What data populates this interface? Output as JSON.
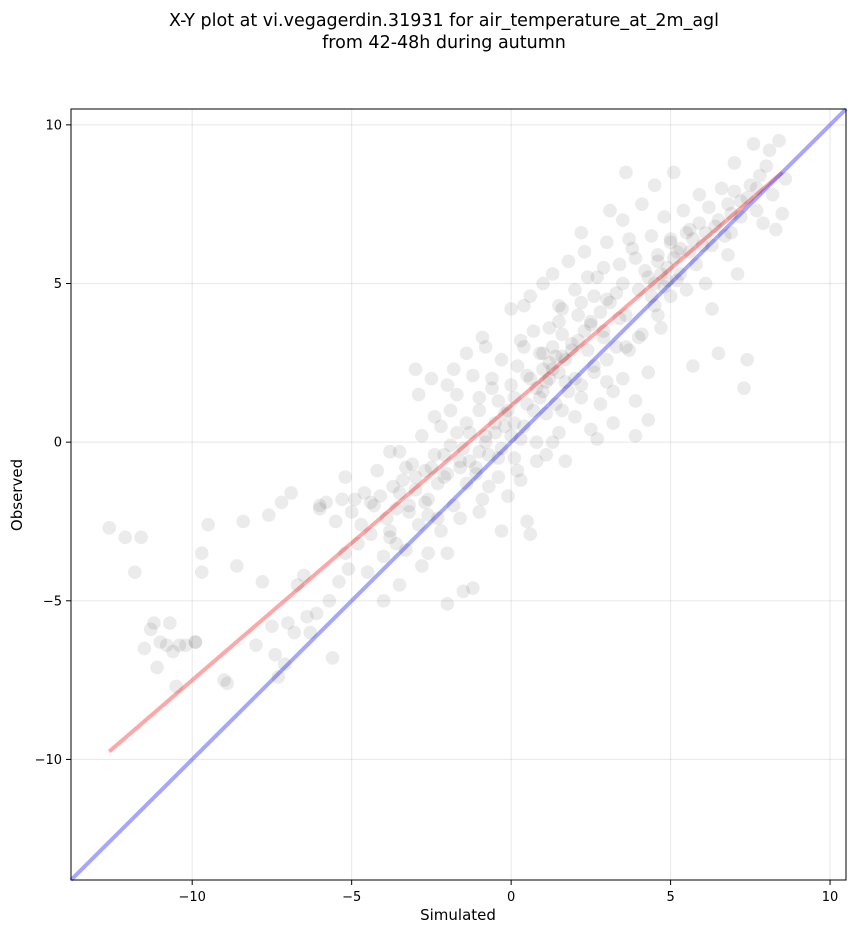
{
  "chart_data": {
    "type": "scatter",
    "title_lines": [
      "X-Y plot at vi.vegagerdin.31931 for air_temperature_at_2m_agl",
      "from 42-48h during autumn"
    ],
    "xlabel": "Simulated",
    "ylabel": "Observed",
    "xlim": [
      -13.8,
      10.5
    ],
    "ylim": [
      -13.8,
      10.5
    ],
    "x_ticks": [
      -10,
      -5,
      0,
      5,
      10
    ],
    "y_ticks": [
      -10,
      -5,
      0,
      5,
      10
    ],
    "x_tick_labels": [
      "−10",
      "−5",
      "0",
      "5",
      "10"
    ],
    "y_tick_labels": [
      "−10",
      "−5",
      "0",
      "5",
      "10"
    ],
    "grid": true,
    "colors": {
      "points": "#000000",
      "fit_line": "#ff4d4d",
      "identity_line": "#4d4dff"
    },
    "fit_line": {
      "x": [
        -12.6,
        8.5
      ],
      "y": [
        -9.75,
        8.5
      ]
    },
    "identity_line": {
      "x": [
        -13.8,
        10.5
      ],
      "y": [
        -13.8,
        10.5
      ]
    },
    "points": [
      [
        -12.6,
        -2.7
      ],
      [
        -12.1,
        -3.0
      ],
      [
        -11.8,
        -4.1
      ],
      [
        -11.6,
        -3.0
      ],
      [
        -11.5,
        -6.5
      ],
      [
        -11.3,
        -5.9
      ],
      [
        -11.2,
        -5.7
      ],
      [
        -11.1,
        -7.1
      ],
      [
        -11.0,
        -6.3
      ],
      [
        -10.8,
        -6.4
      ],
      [
        -10.7,
        -5.7
      ],
      [
        -10.6,
        -6.6
      ],
      [
        -10.5,
        -7.7
      ],
      [
        -10.4,
        -6.4
      ],
      [
        -10.2,
        -6.4
      ],
      [
        -9.9,
        -6.3
      ],
      [
        -9.7,
        -3.5
      ],
      [
        -9.7,
        -4.1
      ],
      [
        -9.5,
        -2.6
      ],
      [
        -9.0,
        -7.5
      ],
      [
        -8.9,
        -7.6
      ],
      [
        -8.6,
        -3.9
      ],
      [
        -8.4,
        -2.5
      ],
      [
        -8.0,
        -6.4
      ],
      [
        -7.8,
        -4.4
      ],
      [
        -7.6,
        -2.3
      ],
      [
        -7.5,
        -5.8
      ],
      [
        -7.4,
        -6.7
      ],
      [
        -7.3,
        -7.4
      ],
      [
        -7.2,
        -1.9
      ],
      [
        -7.1,
        -7.0
      ],
      [
        -7.0,
        -5.7
      ],
      [
        -6.9,
        -1.6
      ],
      [
        -6.8,
        -6.0
      ],
      [
        -6.7,
        -4.5
      ],
      [
        -6.5,
        -4.2
      ],
      [
        -6.4,
        -5.5
      ],
      [
        -6.3,
        -6.0
      ],
      [
        -6.1,
        -5.4
      ],
      [
        -6.0,
        -2.1
      ],
      [
        -5.8,
        -1.9
      ],
      [
        -5.7,
        -5.0
      ],
      [
        -5.6,
        -6.8
      ],
      [
        -5.5,
        -2.5
      ],
      [
        -5.4,
        -4.4
      ],
      [
        -5.3,
        -1.8
      ],
      [
        -5.2,
        -3.5
      ],
      [
        -5.1,
        -4.0
      ],
      [
        -5.0,
        -2.2
      ],
      [
        -4.9,
        -1.8
      ],
      [
        -4.8,
        -3.2
      ],
      [
        -4.7,
        -2.6
      ],
      [
        -4.6,
        -1.6
      ],
      [
        -4.5,
        -4.1
      ],
      [
        -4.4,
        -2.9
      ],
      [
        -4.3,
        -2.0
      ],
      [
        -4.2,
        -0.9
      ],
      [
        -4.1,
        -1.7
      ],
      [
        -4.0,
        -3.6
      ],
      [
        -3.9,
        -2.4
      ],
      [
        -3.8,
        -3.0
      ],
      [
        -3.7,
        -1.4
      ],
      [
        -3.6,
        -2.1
      ],
      [
        -3.5,
        -0.3
      ],
      [
        -3.4,
        -1.2
      ],
      [
        -3.3,
        -3.4
      ],
      [
        -3.2,
        -2.0
      ],
      [
        -3.1,
        -0.7
      ],
      [
        -3.0,
        2.3
      ],
      [
        -3.0,
        -1.5
      ],
      [
        -2.9,
        -2.6
      ],
      [
        -2.8,
        -3.9
      ],
      [
        -2.7,
        -0.9
      ],
      [
        -2.6,
        -1.8
      ],
      [
        -2.5,
        2.0
      ],
      [
        -2.4,
        -0.4
      ],
      [
        -2.3,
        -2.4
      ],
      [
        -2.2,
        0.5
      ],
      [
        -2.1,
        -1.1
      ],
      [
        -2.0,
        1.8
      ],
      [
        -2.0,
        -3.5
      ],
      [
        -1.9,
        -0.1
      ],
      [
        -1.8,
        -2.0
      ],
      [
        -1.7,
        1.5
      ],
      [
        -1.6,
        -0.6
      ],
      [
        -1.5,
        -4.7
      ],
      [
        -1.4,
        2.8
      ],
      [
        -1.4,
        -1.3
      ],
      [
        -1.3,
        0.3
      ],
      [
        -1.2,
        2.1
      ],
      [
        -1.1,
        -0.8
      ],
      [
        -1.0,
        1.0
      ],
      [
        -1.0,
        -2.2
      ],
      [
        -0.9,
        3.3
      ],
      [
        -0.8,
        0.2
      ],
      [
        -0.7,
        -1.4
      ],
      [
        -0.6,
        1.7
      ],
      [
        -0.5,
        0.6
      ],
      [
        -0.4,
        -0.5
      ],
      [
        -0.3,
        2.6
      ],
      [
        -0.2,
        0.9
      ],
      [
        -0.1,
        -1.7
      ],
      [
        0.0,
        4.2
      ],
      [
        0.0,
        0.2
      ],
      [
        0.1,
        1.4
      ],
      [
        0.2,
        -0.9
      ],
      [
        0.3,
        3.2
      ],
      [
        0.4,
        0.5
      ],
      [
        0.5,
        2.1
      ],
      [
        0.5,
        -2.5
      ],
      [
        0.6,
        4.6
      ],
      [
        0.7,
        1.0
      ],
      [
        0.8,
        0.0
      ],
      [
        0.9,
        2.8
      ],
      [
        1.0,
        1.6
      ],
      [
        1.0,
        5.0
      ],
      [
        1.1,
        -0.4
      ],
      [
        1.2,
        3.6
      ],
      [
        1.3,
        2.3
      ],
      [
        1.4,
        1.2
      ],
      [
        1.5,
        4.3
      ],
      [
        1.5,
        0.3
      ],
      [
        1.6,
        2.7
      ],
      [
        1.7,
        1.9
      ],
      [
        1.8,
        5.7
      ],
      [
        1.9,
        3.1
      ],
      [
        2.0,
        0.8
      ],
      [
        2.0,
        2.0
      ],
      [
        2.1,
        4.0
      ],
      [
        2.2,
        1.4
      ],
      [
        2.3,
        6.0
      ],
      [
        2.4,
        2.9
      ],
      [
        2.5,
        3.7
      ],
      [
        2.5,
        0.4
      ],
      [
        2.6,
        2.2
      ],
      [
        2.7,
        5.2
      ],
      [
        2.8,
        1.2
      ],
      [
        2.9,
        3.5
      ],
      [
        3.0,
        6.3
      ],
      [
        3.0,
        2.6
      ],
      [
        3.1,
        4.4
      ],
      [
        3.2,
        1.6
      ],
      [
        3.3,
        3.0
      ],
      [
        3.4,
        5.6
      ],
      [
        3.5,
        2.0
      ],
      [
        3.5,
        7.0
      ],
      [
        3.6,
        4.0
      ],
      [
        3.7,
        2.9
      ],
      [
        3.8,
        6.1
      ],
      [
        3.9,
        1.3
      ],
      [
        4.0,
        4.8
      ],
      [
        4.0,
        3.3
      ],
      [
        4.1,
        7.5
      ],
      [
        4.2,
        5.4
      ],
      [
        4.3,
        2.2
      ],
      [
        4.4,
        6.5
      ],
      [
        4.5,
        4.3
      ],
      [
        4.5,
        8.1
      ],
      [
        4.6,
        5.9
      ],
      [
        4.7,
        3.6
      ],
      [
        4.8,
        7.1
      ],
      [
        4.9,
        5.1
      ],
      [
        5.0,
        6.4
      ],
      [
        5.0,
        4.6
      ],
      [
        5.1,
        8.5
      ],
      [
        5.2,
        6.0
      ],
      [
        5.3,
        5.3
      ],
      [
        5.4,
        7.3
      ],
      [
        5.5,
        4.8
      ],
      [
        5.6,
        6.7
      ],
      [
        5.7,
        2.4
      ],
      [
        5.8,
        5.6
      ],
      [
        5.9,
        7.8
      ],
      [
        6.0,
        6.2
      ],
      [
        6.1,
        5.0
      ],
      [
        6.2,
        7.4
      ],
      [
        6.3,
        4.2
      ],
      [
        6.4,
        6.8
      ],
      [
        6.5,
        2.8
      ],
      [
        6.6,
        8.0
      ],
      [
        6.7,
        6.5
      ],
      [
        6.8,
        5.9
      ],
      [
        6.9,
        7.2
      ],
      [
        7.0,
        8.8
      ],
      [
        7.1,
        5.3
      ],
      [
        7.2,
        7.6
      ],
      [
        7.3,
        1.7
      ],
      [
        7.4,
        2.6
      ],
      [
        7.5,
        8.1
      ],
      [
        7.6,
        9.4
      ],
      [
        7.7,
        7.3
      ],
      [
        7.8,
        8.4
      ],
      [
        7.9,
        6.9
      ],
      [
        8.0,
        8.7
      ],
      [
        8.1,
        9.2
      ],
      [
        8.2,
        7.8
      ],
      [
        8.3,
        6.7
      ],
      [
        8.4,
        9.5
      ],
      [
        8.5,
        7.2
      ],
      [
        8.6,
        8.3
      ],
      [
        3.6,
        8.5
      ],
      [
        3.9,
        0.2
      ],
      [
        4.3,
        0.7
      ],
      [
        3.2,
        0.6
      ],
      [
        2.7,
        0.1
      ],
      [
        1.7,
        -0.6
      ],
      [
        0.6,
        -2.9
      ],
      [
        -0.3,
        -2.8
      ],
      [
        -1.2,
        -4.6
      ],
      [
        -2.0,
        -5.1
      ],
      [
        -2.6,
        -3.5
      ],
      [
        -3.5,
        -4.5
      ],
      [
        -4.0,
        -5.0
      ],
      [
        -5.2,
        -1.1
      ],
      [
        -3.8,
        -0.3
      ],
      [
        -2.9,
        1.5
      ],
      [
        -1.8,
        2.3
      ],
      [
        -0.8,
        3.0
      ],
      [
        0.4,
        4.3
      ],
      [
        1.3,
        5.3
      ],
      [
        2.2,
        6.6
      ],
      [
        3.1,
        7.3
      ],
      [
        -6.0,
        -2.0
      ],
      [
        -9.9,
        -6.3
      ],
      [
        1.0,
        2.3
      ],
      [
        1.2,
        2.5
      ],
      [
        1.4,
        2.7
      ],
      [
        1.1,
        1.9
      ],
      [
        1.5,
        2.2
      ],
      [
        1.3,
        3.0
      ],
      [
        0.9,
        1.4
      ],
      [
        1.7,
        2.6
      ],
      [
        2.1,
        3.2
      ],
      [
        1.9,
        2.9
      ],
      [
        2.3,
        3.5
      ],
      [
        0.8,
        1.7
      ],
      [
        1.6,
        3.4
      ],
      [
        1.0,
        2.8
      ],
      [
        1.8,
        1.6
      ],
      [
        1.2,
        2.0
      ],
      [
        4.5,
        5.0
      ],
      [
        4.7,
        5.3
      ],
      [
        4.9,
        5.5
      ],
      [
        5.1,
        5.8
      ],
      [
        5.3,
        6.1
      ],
      [
        4.6,
        5.7
      ],
      [
        5.0,
        6.3
      ],
      [
        5.5,
        6.6
      ],
      [
        4.3,
        5.2
      ],
      [
        4.8,
        4.9
      ],
      [
        5.2,
        5.1
      ],
      [
        5.6,
        6.0
      ],
      [
        4.4,
        4.6
      ],
      [
        5.7,
        6.4
      ],
      [
        5.9,
        6.9
      ],
      [
        6.1,
        6.6
      ],
      [
        -1.0,
        -0.3
      ],
      [
        -0.8,
        0.0
      ],
      [
        -1.3,
        -0.6
      ],
      [
        -0.5,
        0.3
      ],
      [
        -1.6,
        -0.8
      ],
      [
        -0.2,
        0.5
      ],
      [
        -1.1,
        -1.0
      ],
      [
        -0.7,
        -0.4
      ],
      [
        -2.0,
        -1.0
      ],
      [
        -1.5,
        -0.2
      ],
      [
        -2.3,
        -1.3
      ],
      [
        -0.3,
        -0.2
      ],
      [
        0.1,
        0.6
      ],
      [
        0.3,
        0.1
      ],
      [
        -0.1,
        1.0
      ],
      [
        0.5,
        1.2
      ],
      [
        2.5,
        3.8
      ],
      [
        2.8,
        4.1
      ],
      [
        3.0,
        4.5
      ],
      [
        3.3,
        4.7
      ],
      [
        2.6,
        4.6
      ],
      [
        3.5,
        5.0
      ],
      [
        2.9,
        3.3
      ],
      [
        3.4,
        3.9
      ],
      [
        -3.5,
        -1.6
      ],
      [
        -3.2,
        -2.2
      ],
      [
        -3.8,
        -2.8
      ],
      [
        -3.0,
        -1.1
      ],
      [
        -3.6,
        -3.2
      ],
      [
        -2.7,
        -1.9
      ],
      [
        -3.3,
        -0.8
      ],
      [
        -4.4,
        -1.9
      ],
      [
        6.5,
        7.0
      ],
      [
        6.8,
        7.5
      ],
      [
        7.0,
        7.9
      ],
      [
        7.2,
        7.1
      ],
      [
        6.3,
        6.2
      ],
      [
        6.9,
        6.6
      ],
      [
        7.4,
        7.7
      ],
      [
        7.7,
        8.0
      ],
      [
        0.0,
        1.8
      ],
      [
        0.2,
        2.4
      ],
      [
        0.6,
        2.0
      ],
      [
        -0.4,
        1.3
      ],
      [
        0.4,
        3.0
      ],
      [
        0.7,
        3.5
      ],
      [
        -0.6,
        2.0
      ],
      [
        0.1,
        -0.5
      ],
      [
        2.0,
        4.8
      ],
      [
        1.6,
        4.2
      ],
      [
        2.4,
        5.2
      ],
      [
        1.5,
        3.8
      ],
      [
        2.2,
        4.4
      ],
      [
        2.9,
        5.5
      ],
      [
        3.7,
        6.4
      ],
      [
        3.9,
        5.8
      ],
      [
        -2.4,
        0.8
      ],
      [
        -2.8,
        0.2
      ],
      [
        -1.9,
        1.0
      ],
      [
        -2.1,
        -0.4
      ],
      [
        -1.7,
        0.3
      ],
      [
        -2.5,
        -0.8
      ],
      [
        -1.4,
        0.6
      ],
      [
        -1.0,
        1.4
      ],
      [
        1.1,
        0.9
      ],
      [
        1.6,
        1.0
      ],
      [
        2.2,
        1.8
      ],
      [
        2.6,
        2.4
      ],
      [
        3.0,
        1.9
      ],
      [
        3.6,
        3.0
      ],
      [
        4.1,
        3.4
      ],
      [
        4.6,
        4.0
      ],
      [
        -0.9,
        -1.8
      ],
      [
        -0.4,
        -1.1
      ],
      [
        0.3,
        -1.2
      ],
      [
        0.8,
        -0.6
      ],
      [
        1.3,
        0.0
      ],
      [
        -1.6,
        -2.4
      ],
      [
        -2.2,
        -2.8
      ],
      [
        -2.6,
        -2.3
      ]
    ]
  }
}
